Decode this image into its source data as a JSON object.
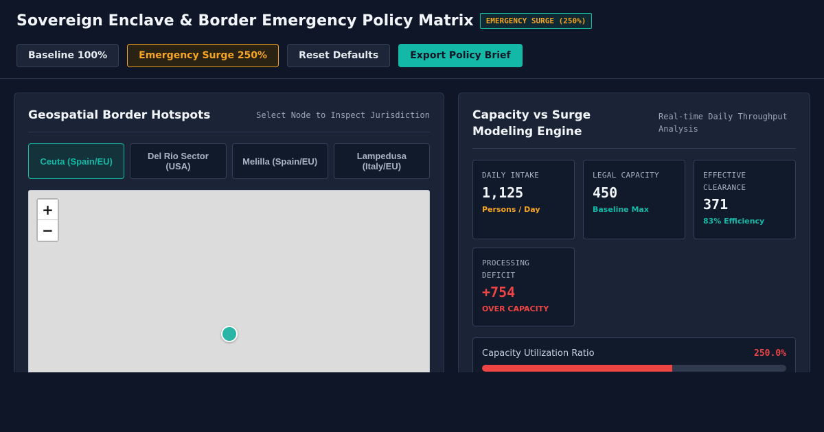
{
  "header": {
    "title": "Sovereign Enclave & Border Emergency Policy Matrix",
    "mode_badge": "EMERGENCY SURGE (250%)"
  },
  "toolbar": {
    "baseline_label": "Baseline 100%",
    "surge_label": "Emergency Surge 250%",
    "reset_label": "Reset Defaults",
    "export_label": "Export Policy Brief"
  },
  "hotspots": {
    "title": "Geospatial Border Hotspots",
    "subtitle": "Select Node to Inspect Jurisdiction",
    "tabs": [
      {
        "label": "Ceuta (Spain/EU)",
        "active": true
      },
      {
        "label": "Del Rio Sector (USA)",
        "active": false
      },
      {
        "label": "Melilla (Spain/EU)",
        "active": false
      },
      {
        "label": "Lampedusa (Italy/EU)",
        "active": false
      }
    ],
    "map": {
      "zoom_in": "+",
      "zoom_out": "−"
    }
  },
  "modeling": {
    "title": "Capacity vs Surge Modeling Engine",
    "subtitle": "Real-time Daily Throughput Analysis",
    "metrics": {
      "daily_intake": {
        "label": "DAILY INTAKE",
        "value": "1,125",
        "note": "Persons / Day"
      },
      "legal_capacity": {
        "label": "LEGAL CAPACITY",
        "value": "450",
        "note": "Baseline Max"
      },
      "effective_clearance": {
        "label": "EFFECTIVE CLEARANCE",
        "value": "371",
        "note": "83% Efficiency"
      },
      "processing_deficit": {
        "label": "PROCESSING DEFICIT",
        "value": "+754",
        "note": "OVER CAPACITY"
      }
    },
    "utilization": {
      "label": "Capacity Utilization Ratio",
      "value_text": "250.0%",
      "fill_fraction": 0.625
    }
  },
  "colors": {
    "accent": "#14b8a6",
    "warning": "#f5a524",
    "danger": "#ef4444",
    "background": "#0e1628"
  }
}
